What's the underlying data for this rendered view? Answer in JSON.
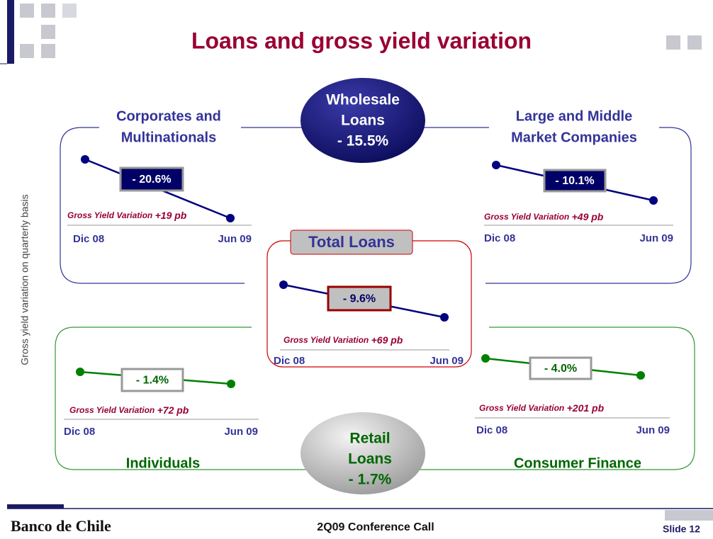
{
  "title": "Loans and gross yield variation",
  "side_label": "Gross yield variation on quarterly basis",
  "wholesale": {
    "lines": [
      "Wholesale",
      "Loans",
      "- 15.5%"
    ]
  },
  "retail": {
    "lines": [
      "Retail",
      "Loans",
      "- 1.7%"
    ]
  },
  "total_loans": "Total Loans",
  "panels": [
    {
      "title": [
        "Corporates and",
        "Multinationals"
      ],
      "change": "- 20.6%",
      "yield_label": "Gross Yield Variation",
      "yield_value": "+19 pb",
      "start": "Dic 08",
      "end": "Jun 09"
    },
    {
      "title": [
        "Large and Middle",
        "Market Companies"
      ],
      "change": "- 10.1%",
      "yield_label": "Gross Yield Variation",
      "yield_value": "+49 pb",
      "start": "Dic 08",
      "end": "Jun 09"
    },
    {
      "change": "- 9.6%",
      "yield_label": "Gross Yield Variation",
      "yield_value": "+69 pb",
      "start": "Dic 08",
      "end": "Jun 09"
    },
    {
      "title": [
        "Individuals"
      ],
      "change": "- 1.4%",
      "yield_label": "Gross Yield Variation",
      "yield_value": "+72 pb",
      "start": "Dic 08",
      "end": "Jun 09"
    },
    {
      "title": [
        "Consumer Finance"
      ],
      "change": "- 4.0%",
      "yield_label": "Gross Yield Variation",
      "yield_value": "+201 pb",
      "start": "Dic 08",
      "end": "Jun 09"
    }
  ],
  "footer": {
    "brand": "Banco de Chile",
    "event": "2Q09 Conference Call",
    "slide": "Slide 12"
  }
}
